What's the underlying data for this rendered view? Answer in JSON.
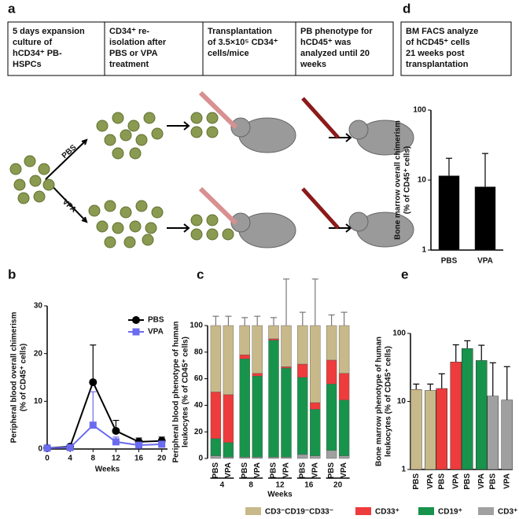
{
  "diagram": {
    "panel": "a",
    "steps": [
      {
        "lines": [
          "5 days expansion",
          "culture of",
          "hCD34⁺ PB-",
          "HSPCs"
        ]
      },
      {
        "lines": [
          "CD34⁺ re-",
          "isolation after",
          "PBS or VPA",
          "treatment"
        ]
      },
      {
        "lines": [
          "Transplantation",
          "of 3.5×10⁵ CD34⁺",
          "cells/mice"
        ]
      },
      {
        "lines": [
          "PB phenotype for",
          "hCD45⁺ was",
          "analyzed until 20",
          "weeks"
        ]
      },
      {
        "lines": [
          "BM FACS analyze",
          "of hCD45⁺ cells",
          "21 weeks post",
          "transplantation"
        ]
      }
    ],
    "arrow_labels": [
      "PBS",
      "VPA"
    ]
  },
  "chart_data": [
    {
      "type": "bar",
      "panel": "d",
      "log_scale": true,
      "ylabel": [
        "Bone marrow overall chimerism",
        "(% of CD45⁺ cells)"
      ],
      "categories": [
        "PBS",
        "VPA"
      ],
      "values": [
        11.5,
        8
      ],
      "errors": [
        9,
        16
      ],
      "colors": [
        "#000000",
        "#000000"
      ],
      "ylim": [
        1,
        100
      ],
      "yticks": [
        1,
        10,
        100
      ]
    },
    {
      "type": "line",
      "panel": "b",
      "ylabel": [
        "Peripheral blood overall chimerism",
        "(% of CD45⁺ cells)"
      ],
      "xlabel": "Weeks",
      "x": [
        0,
        4,
        8,
        12,
        16,
        20
      ],
      "xlim": [
        0,
        21
      ],
      "xticks": [
        0,
        4,
        8,
        12,
        16,
        20
      ],
      "ylim": [
        0,
        30
      ],
      "yticks": [
        0,
        10,
        20,
        30
      ],
      "legend": "upper right",
      "series": [
        {
          "name": "PBS",
          "color": "#000000",
          "marker": "circle",
          "values": [
            0.2,
            0.5,
            14,
            3.8,
            1.5,
            1.7
          ],
          "errors": [
            0.2,
            0.3,
            7.8,
            2.2,
            0.8,
            0.8
          ]
        },
        {
          "name": "VPA",
          "color": "#6b6bef",
          "marker": "square",
          "values": [
            0.2,
            0.3,
            5,
            1.5,
            0.8,
            1.0
          ],
          "errors": [
            0.1,
            0.2,
            7,
            1,
            0.5,
            0.5
          ]
        }
      ]
    },
    {
      "type": "stacked_bar",
      "panel": "c",
      "ylabel": [
        "Peripheral blood phenotype of human",
        "leukocytes (% of CD45⁺ cells)"
      ],
      "xlabel": "Weeks",
      "categories": [
        "PBS",
        "VPA",
        "PBS",
        "VPA",
        "PBS",
        "VPA",
        "PBS",
        "VPA",
        "PBS",
        "VPA"
      ],
      "groups": [
        "4",
        "8",
        "12",
        "16",
        "20"
      ],
      "ylim": [
        0,
        100
      ],
      "yticks": [
        0,
        20,
        40,
        60,
        80,
        100
      ],
      "series": [
        {
          "name": "CD3⁻CD19⁻CD33⁻",
          "color": "#c8b98a",
          "values": [
            50,
            52,
            22,
            36,
            10,
            31,
            29,
            58,
            26,
            36
          ],
          "errors": [
            7,
            7,
            6,
            7,
            6,
            35,
            10,
            35,
            8,
            10
          ]
        },
        {
          "name": "CD33⁺",
          "color": "#ee3b3b",
          "values": [
            35,
            36,
            3,
            2,
            1,
            1,
            10,
            5,
            18,
            20
          ]
        },
        {
          "name": "CD19⁺",
          "color": "#17934b",
          "values": [
            13,
            11,
            74,
            61,
            88,
            67,
            58,
            35,
            50,
            42
          ]
        },
        {
          "name": "CD3⁺",
          "color": "#a0a0a0",
          "values": [
            2,
            1,
            1,
            1,
            1,
            1,
            3,
            2,
            6,
            2
          ]
        }
      ]
    },
    {
      "type": "bar",
      "panel": "e",
      "log_scale": true,
      "ylabel": [
        "Bone marrow phenotype of human",
        "leukocytes (% of CD45⁺ cells)"
      ],
      "categories": [
        "PBS",
        "VPA",
        "PBS",
        "VPA",
        "PBS",
        "VPA",
        "PBS",
        "VPA"
      ],
      "values": [
        15,
        14.5,
        15.5,
        38,
        60,
        40,
        12,
        10.5
      ],
      "errors": [
        3,
        3.5,
        10,
        30,
        18,
        27,
        25,
        22
      ],
      "colors": [
        "#c8b98a",
        "#c8b98a",
        "#ee3b3b",
        "#ee3b3b",
        "#17934b",
        "#17934b",
        "#a0a0a0",
        "#a0a0a0"
      ],
      "ylim": [
        1,
        100
      ],
      "yticks": [
        1,
        10,
        100
      ]
    }
  ]
}
